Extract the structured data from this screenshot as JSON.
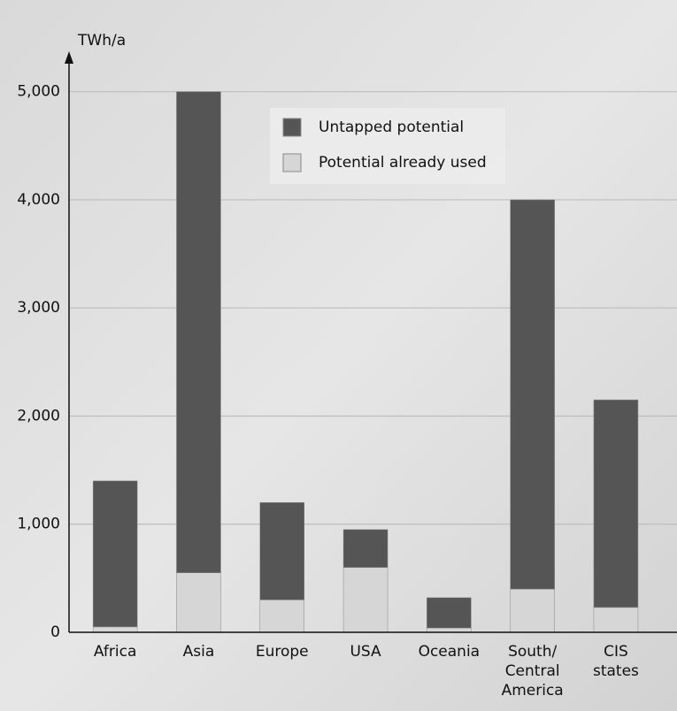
{
  "chart_data": {
    "type": "stacked-bar",
    "y_label": "TWh/a",
    "categories": [
      "Africa",
      "Asia",
      "Europe",
      "USA",
      "Oceania",
      "South/ Central America",
      "CIS states"
    ],
    "series": [
      {
        "name": "Potential already used",
        "color": "#d6d6d6",
        "values": [
          50,
          550,
          300,
          600,
          40,
          400,
          230
        ]
      },
      {
        "name": "Untapped potential",
        "color": "#555555",
        "values": [
          1350,
          4450,
          900,
          350,
          280,
          3600,
          1920
        ]
      }
    ],
    "ylim": [
      0,
      5300
    ],
    "yticks": [
      0,
      {
        "value": 1000,
        "label": "1,000"
      },
      {
        "value": 2000,
        "label": "2,000"
      },
      {
        "value": 3000,
        "label": "3,000"
      },
      {
        "value": 4000,
        "label": "4,000"
      },
      {
        "value": 5000,
        "label": "5,000"
      }
    ],
    "grid": true
  }
}
